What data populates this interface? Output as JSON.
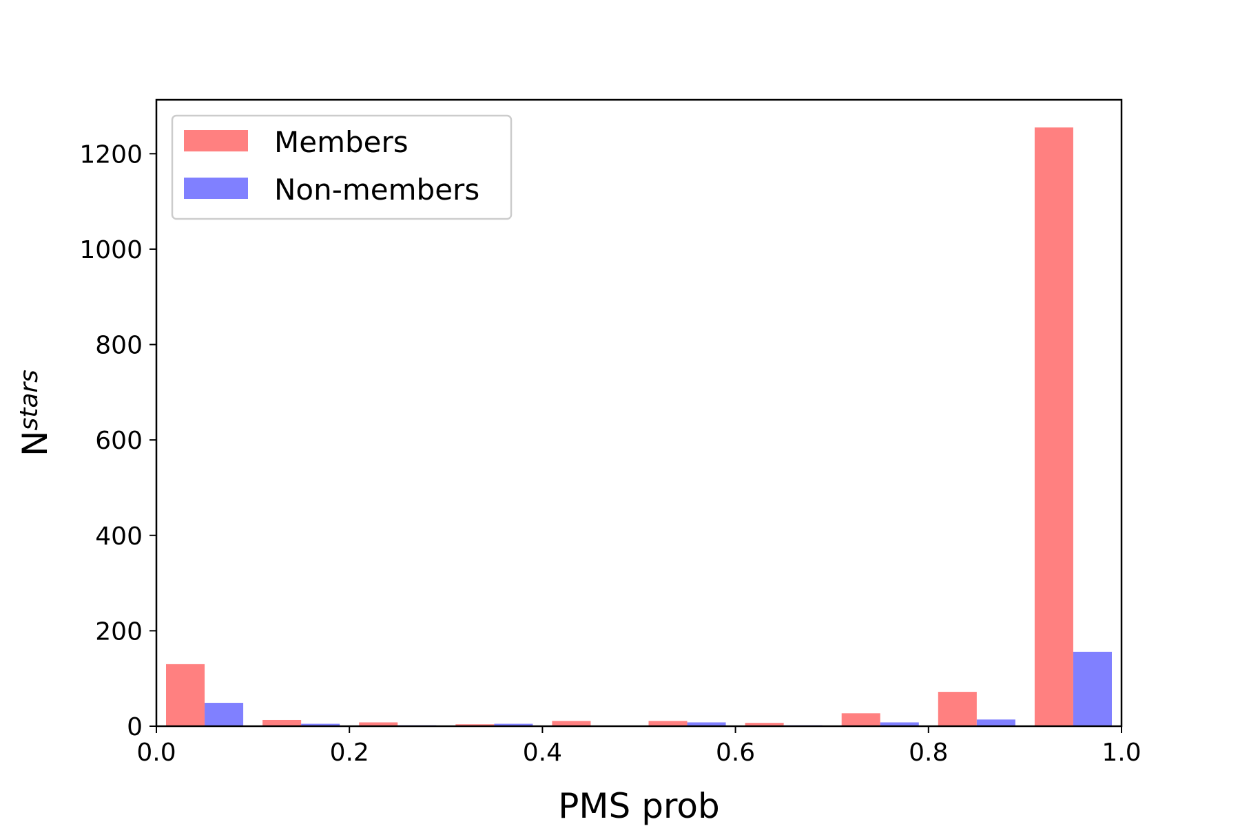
{
  "chart_data": {
    "type": "bar",
    "title": "",
    "xlabel": "PMS prob",
    "ylabel": {
      "main": "N",
      "subscript": "stars"
    },
    "xlim": [
      0.0,
      1.0
    ],
    "ylim": [
      0,
      1313
    ],
    "xticks": [
      0.0,
      0.2,
      0.4,
      0.6,
      0.8,
      1.0
    ],
    "xtick_labels": [
      "0.0",
      "0.2",
      "0.4",
      "0.6",
      "0.8",
      "1.0"
    ],
    "yticks": [
      0,
      200,
      400,
      600,
      800,
      1000,
      1200
    ],
    "ytick_labels": [
      "0",
      "200",
      "400",
      "600",
      "800",
      "1000",
      "1200"
    ],
    "bin_edges": [
      0.0,
      0.1,
      0.2,
      0.3,
      0.4,
      0.5,
      0.6,
      0.7,
      0.8,
      0.9,
      1.0
    ],
    "grid": false,
    "legend_position": "top-left",
    "series": [
      {
        "name": "Members",
        "color": "#ff8080",
        "values": [
          130,
          13,
          8,
          4,
          11,
          11,
          7,
          27,
          72,
          1255
        ]
      },
      {
        "name": "Non-members",
        "color": "#8080ff",
        "values": [
          49,
          5,
          2,
          5,
          0,
          8,
          2,
          8,
          14,
          156
        ]
      }
    ]
  }
}
